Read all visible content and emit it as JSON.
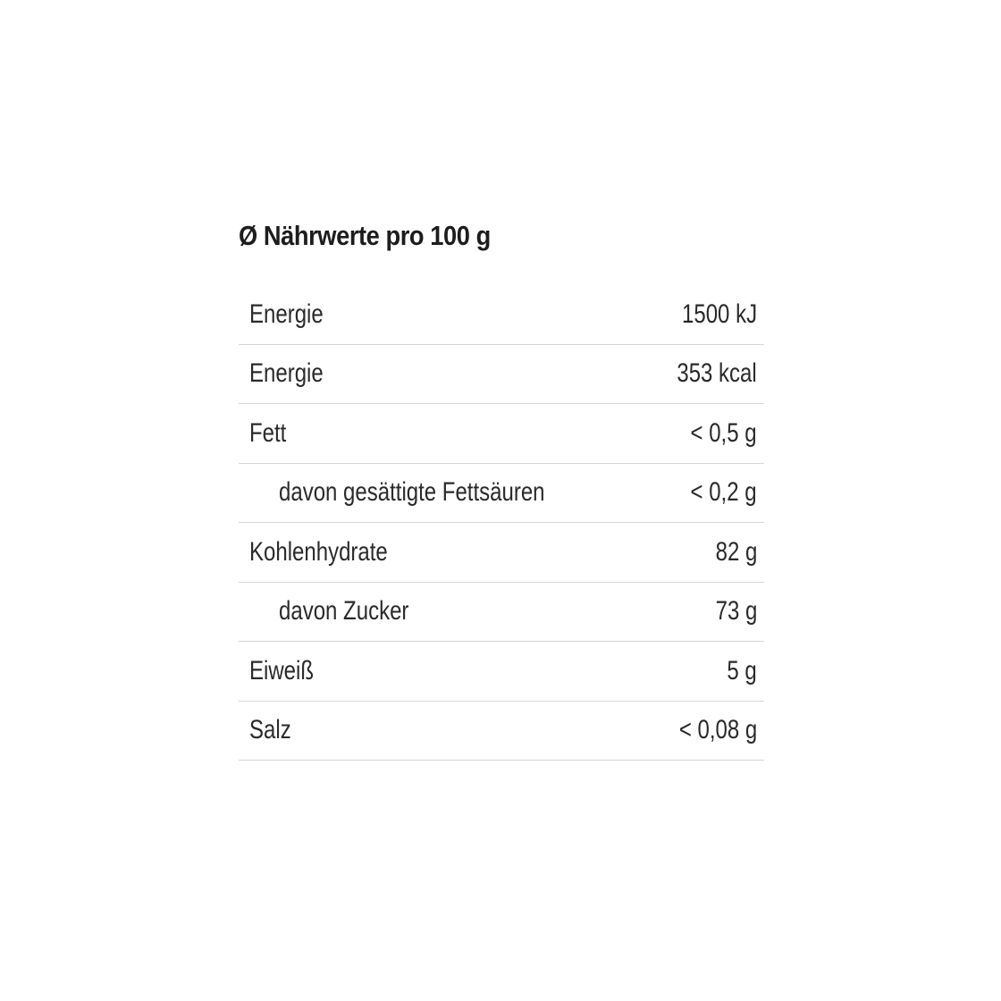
{
  "title": "Ø Nährwerte pro 100 g",
  "rows": [
    {
      "label": "Energie",
      "value": "1500 kJ",
      "sub": false
    },
    {
      "label": "Energie",
      "value": "353 kcal",
      "sub": false
    },
    {
      "label": "Fett",
      "value": "< 0,5 g",
      "sub": false
    },
    {
      "label": "davon gesättigte Fettsäuren",
      "value": "< 0,2 g",
      "sub": true
    },
    {
      "label": "Kohlenhydrate",
      "value": "82 g",
      "sub": false
    },
    {
      "label": "davon Zucker",
      "value": "73 g",
      "sub": true
    },
    {
      "label": "Eiweiß",
      "value": "5 g",
      "sub": false
    },
    {
      "label": "Salz",
      "value": "< 0,08 g",
      "sub": false
    }
  ]
}
